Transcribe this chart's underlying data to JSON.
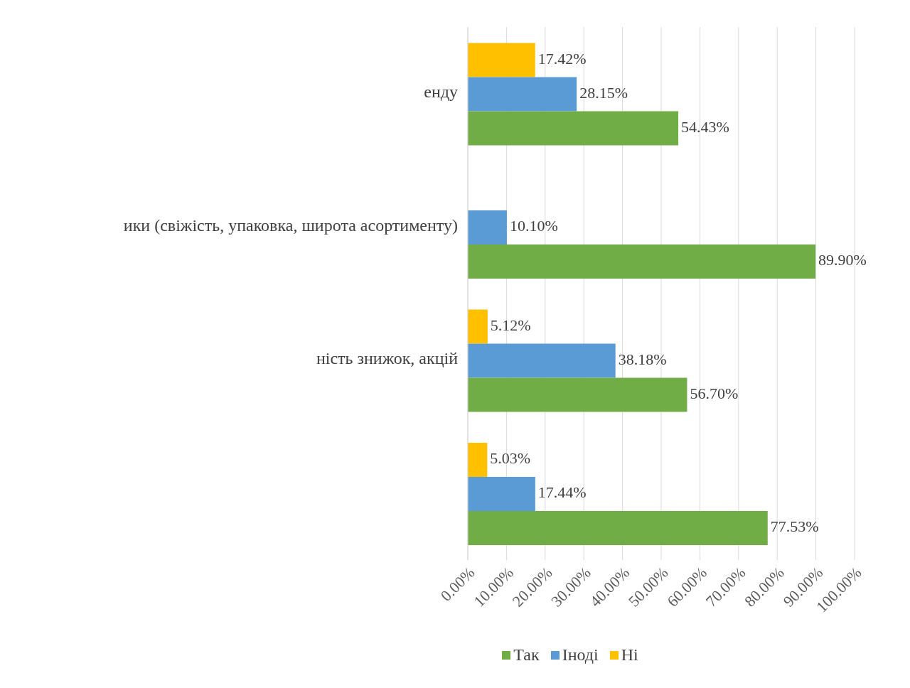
{
  "chart_data": {
    "type": "bar",
    "orientation": "horizontal",
    "categories": [
      "енду",
      "ики (свіжість, упаковка, широта асортименту)",
      "ність знижок, акцій",
      null
    ],
    "series": [
      {
        "name": "Так",
        "color": "#70ad47",
        "values": [
          54.43,
          89.9,
          56.7,
          77.53
        ],
        "value_labels": [
          "54.43%",
          "89.90%",
          "56.70%",
          "77.53%"
        ]
      },
      {
        "name": "Іноді",
        "color": "#5b9bd5",
        "values": [
          28.15,
          10.1,
          38.18,
          17.44
        ],
        "value_labels": [
          "28.15%",
          "10.10%",
          "38.18%",
          "17.44%"
        ]
      },
      {
        "name": "Ні",
        "color": "#ffc000",
        "values": [
          17.42,
          null,
          5.12,
          5.03
        ],
        "value_labels": [
          "17.42%",
          null,
          "5.12%",
          "5.03%"
        ]
      }
    ],
    "xlim": [
      0,
      100
    ],
    "xticks": [
      {
        "value": 0,
        "label": "0.00%"
      },
      {
        "value": 10,
        "label": "10.00%"
      },
      {
        "value": 20,
        "label": "20.00%"
      },
      {
        "value": 30,
        "label": "30.00%"
      },
      {
        "value": 40,
        "label": "40.00%"
      },
      {
        "value": 50,
        "label": "50.00%"
      },
      {
        "value": 60,
        "label": "60.00%"
      },
      {
        "value": 70,
        "label": "70.00%"
      },
      {
        "value": 80,
        "label": "80.00%"
      },
      {
        "value": 90,
        "label": "90.00%"
      },
      {
        "value": 100,
        "label": "100.00%"
      }
    ],
    "grid": "x",
    "legend": "bottom"
  }
}
